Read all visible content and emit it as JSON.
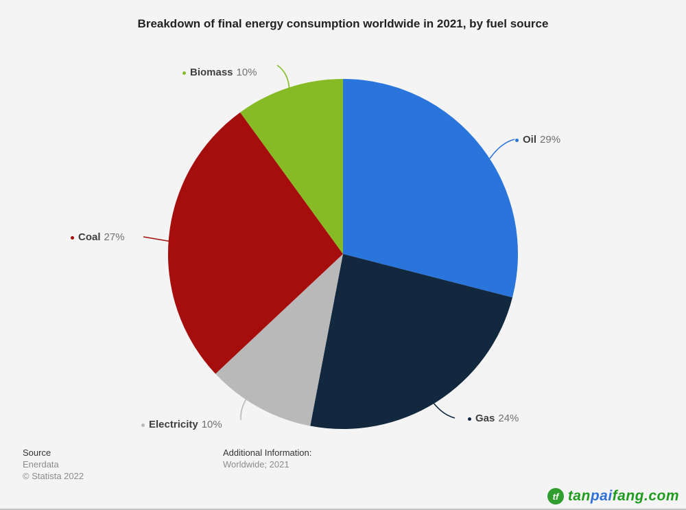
{
  "page": {
    "background": "#f4f4f4"
  },
  "chart_data": {
    "type": "pie",
    "title": "Breakdown of final energy consumption worldwide in 2021, by fuel source",
    "unit": "%",
    "start_angle_deg": 0,
    "direction": "clockwise",
    "legend_position": "callout-labels",
    "slices": [
      {
        "label": "Oil",
        "value": 29,
        "value_label": "29%",
        "color": "#2a75dc"
      },
      {
        "label": "Gas",
        "value": 24,
        "value_label": "24%",
        "color": "#12283e"
      },
      {
        "label": "Electricity",
        "value": 10,
        "value_label": "10%",
        "color": "#b9b9b9"
      },
      {
        "label": "Coal",
        "value": 27,
        "value_label": "27%",
        "color": "#a60d0d"
      },
      {
        "label": "Biomass",
        "value": 10,
        "value_label": "10%",
        "color": "#86bb25"
      }
    ]
  },
  "footer": {
    "source_heading": "Source",
    "source_name": "Enerdata",
    "copyright": "© Statista 2022",
    "additional_heading": "Additional Information:",
    "additional_text": "Worldwide; 2021"
  },
  "watermark": {
    "icon": "tanpaifang-logo-icon",
    "part1": "tan",
    "part2": "pai",
    "part3": "fang.com",
    "green_color": "#1f9c1f",
    "blue_color": "#2e6fd9",
    "icon_color": "#2f9e2f"
  }
}
